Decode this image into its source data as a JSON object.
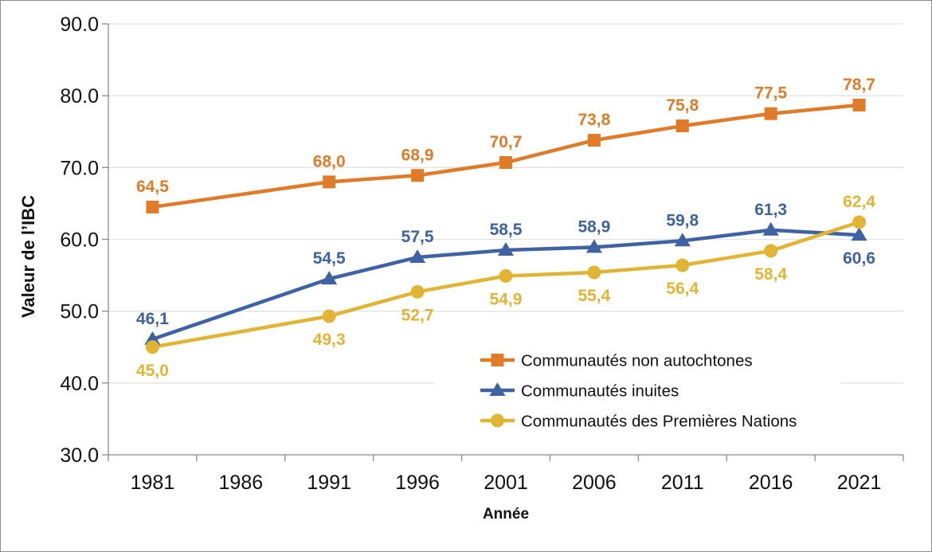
{
  "chart_data": {
    "type": "line",
    "title": "",
    "xlabel": "Année",
    "ylabel": "Valeur de l’IBC",
    "categories": [
      "1981",
      "1986",
      "1991",
      "1996",
      "2001",
      "2006",
      "2011",
      "2016",
      "2021"
    ],
    "ylim": [
      30,
      90
    ],
    "yticks": [
      30,
      40,
      50,
      60,
      70,
      80,
      90
    ],
    "ytick_labels": [
      "30.0",
      "40.0",
      "50.0",
      "60.0",
      "70.0",
      "80.0",
      "90.0"
    ],
    "grid": true,
    "legend_position": "bottom-right",
    "series": [
      {
        "name": "Communautés non autochtones",
        "color": "#E07B29",
        "marker": "square",
        "values": [
          64.5,
          null,
          68.0,
          68.9,
          70.7,
          73.8,
          75.8,
          77.5,
          78.7
        ],
        "labels": [
          "64,5",
          null,
          "68,0",
          "68,9",
          "70,7",
          "73,8",
          "75,8",
          "77,5",
          "78,7"
        ],
        "label_positions": [
          "above",
          null,
          "above",
          "above",
          "above",
          "above",
          "above",
          "above",
          "above"
        ]
      },
      {
        "name": "Communautés inuites",
        "color": "#3E62A3",
        "marker": "triangle",
        "values": [
          46.1,
          null,
          54.5,
          57.5,
          58.5,
          58.9,
          59.8,
          61.3,
          60.6
        ],
        "labels": [
          "46,1",
          null,
          "54,5",
          "57,5",
          "58,5",
          "58,9",
          "59,8",
          "61,3",
          "60,6"
        ],
        "label_positions": [
          "above",
          null,
          "above",
          "above",
          "above",
          "above",
          "above",
          "above",
          "below"
        ]
      },
      {
        "name": "Communautés des Premières Nations",
        "color": "#E2B435",
        "marker": "circle",
        "values": [
          45.0,
          null,
          49.3,
          52.7,
          54.9,
          55.4,
          56.4,
          58.4,
          62.4
        ],
        "labels": [
          "45,0",
          null,
          "49,3",
          "52,7",
          "54,9",
          "55,4",
          "56,4",
          "58,4",
          "62,4"
        ],
        "label_positions": [
          "below",
          null,
          "below",
          "below",
          "below",
          "below",
          "below",
          "below",
          "above"
        ]
      }
    ]
  }
}
